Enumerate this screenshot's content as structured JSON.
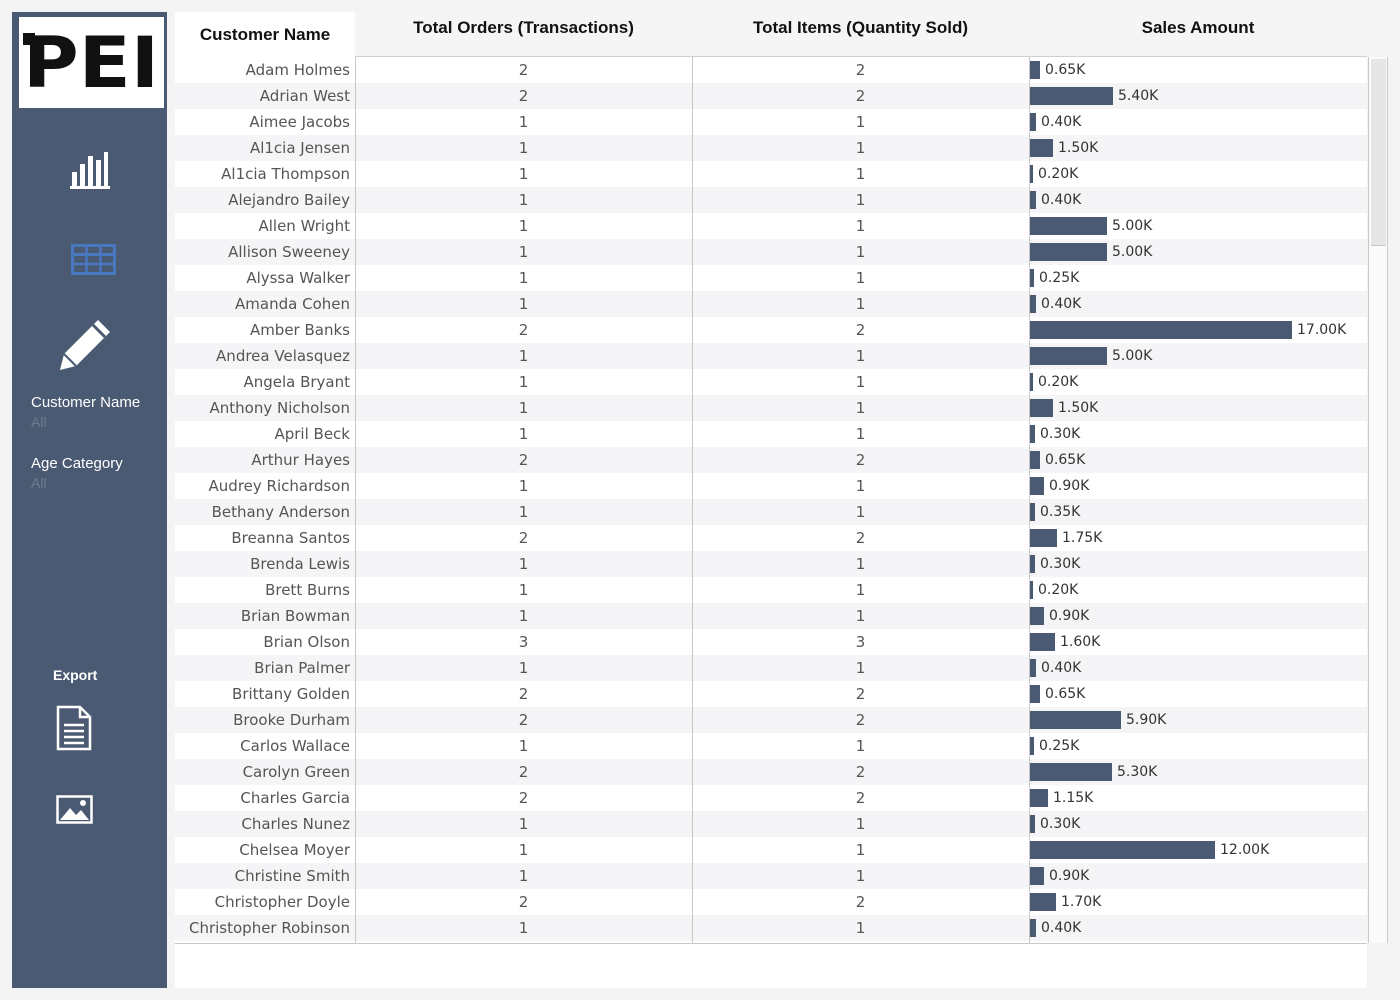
{
  "logo": {
    "text": "PEI"
  },
  "sidebar": {
    "nav": [
      {
        "name": "bar-chart-icon",
        "label": ""
      },
      {
        "name": "table-icon",
        "label": ""
      },
      {
        "name": "pencil-icon",
        "label": ""
      }
    ],
    "filters": [
      {
        "label": "Customer Name",
        "value": "All"
      },
      {
        "label": "Age Category",
        "value": "All"
      }
    ],
    "export_label": "Export",
    "colors": {
      "sidebar": "#4a5a73",
      "active_icon": "#4a78c0"
    }
  },
  "table": {
    "headers": {
      "name": "Customer Name",
      "orders": "Total Orders (Transactions)",
      "items": "Total Items (Quantity Sold)",
      "sales": "Sales Amount"
    },
    "bar_color": "#4a5a73",
    "sales_max": 17.0,
    "rows": [
      {
        "name": "Adam Holmes",
        "orders": "2",
        "items": "2",
        "sales": 0.65,
        "sales_label": "0.65K"
      },
      {
        "name": "Adrian West",
        "orders": "2",
        "items": "2",
        "sales": 5.4,
        "sales_label": "5.40K"
      },
      {
        "name": "Aimee Jacobs",
        "orders": "1",
        "items": "1",
        "sales": 0.4,
        "sales_label": "0.40K"
      },
      {
        "name": "Al1cia Jensen",
        "orders": "1",
        "items": "1",
        "sales": 1.5,
        "sales_label": "1.50K"
      },
      {
        "name": "Al1cia Thompson",
        "orders": "1",
        "items": "1",
        "sales": 0.2,
        "sales_label": "0.20K"
      },
      {
        "name": "Alejandro Bailey",
        "orders": "1",
        "items": "1",
        "sales": 0.4,
        "sales_label": "0.40K"
      },
      {
        "name": "Allen Wright",
        "orders": "1",
        "items": "1",
        "sales": 5.0,
        "sales_label": "5.00K"
      },
      {
        "name": "Allison Sweeney",
        "orders": "1",
        "items": "1",
        "sales": 5.0,
        "sales_label": "5.00K"
      },
      {
        "name": "Alyssa Walker",
        "orders": "1",
        "items": "1",
        "sales": 0.25,
        "sales_label": "0.25K"
      },
      {
        "name": "Amanda Cohen",
        "orders": "1",
        "items": "1",
        "sales": 0.4,
        "sales_label": "0.40K"
      },
      {
        "name": "Amber Banks",
        "orders": "2",
        "items": "2",
        "sales": 17.0,
        "sales_label": "17.00K"
      },
      {
        "name": "Andrea Velasquez",
        "orders": "1",
        "items": "1",
        "sales": 5.0,
        "sales_label": "5.00K"
      },
      {
        "name": "Angela Bryant",
        "orders": "1",
        "items": "1",
        "sales": 0.2,
        "sales_label": "0.20K"
      },
      {
        "name": "Anthony Nicholson",
        "orders": "1",
        "items": "1",
        "sales": 1.5,
        "sales_label": "1.50K"
      },
      {
        "name": "April Beck",
        "orders": "1",
        "items": "1",
        "sales": 0.3,
        "sales_label": "0.30K"
      },
      {
        "name": "Arthur Hayes",
        "orders": "2",
        "items": "2",
        "sales": 0.65,
        "sales_label": "0.65K"
      },
      {
        "name": "Audrey Richardson",
        "orders": "1",
        "items": "1",
        "sales": 0.9,
        "sales_label": "0.90K"
      },
      {
        "name": "Bethany Anderson",
        "orders": "1",
        "items": "1",
        "sales": 0.35,
        "sales_label": "0.35K"
      },
      {
        "name": "Breanna Santos",
        "orders": "2",
        "items": "2",
        "sales": 1.75,
        "sales_label": "1.75K"
      },
      {
        "name": "Brenda Lewis",
        "orders": "1",
        "items": "1",
        "sales": 0.3,
        "sales_label": "0.30K"
      },
      {
        "name": "Brett Burns",
        "orders": "1",
        "items": "1",
        "sales": 0.2,
        "sales_label": "0.20K"
      },
      {
        "name": "Brian Bowman",
        "orders": "1",
        "items": "1",
        "sales": 0.9,
        "sales_label": "0.90K"
      },
      {
        "name": "Brian Olson",
        "orders": "3",
        "items": "3",
        "sales": 1.6,
        "sales_label": "1.60K"
      },
      {
        "name": "Brian Palmer",
        "orders": "1",
        "items": "1",
        "sales": 0.4,
        "sales_label": "0.40K"
      },
      {
        "name": "Brittany Golden",
        "orders": "2",
        "items": "2",
        "sales": 0.65,
        "sales_label": "0.65K"
      },
      {
        "name": "Brooke Durham",
        "orders": "2",
        "items": "2",
        "sales": 5.9,
        "sales_label": "5.90K"
      },
      {
        "name": "Carlos Wallace",
        "orders": "1",
        "items": "1",
        "sales": 0.25,
        "sales_label": "0.25K"
      },
      {
        "name": "Carolyn Green",
        "orders": "2",
        "items": "2",
        "sales": 5.3,
        "sales_label": "5.30K"
      },
      {
        "name": "Charles Garcia",
        "orders": "2",
        "items": "2",
        "sales": 1.15,
        "sales_label": "1.15K"
      },
      {
        "name": "Charles Nunez",
        "orders": "1",
        "items": "1",
        "sales": 0.3,
        "sales_label": "0.30K"
      },
      {
        "name": "Chelsea Moyer",
        "orders": "1",
        "items": "1",
        "sales": 12.0,
        "sales_label": "12.00K"
      },
      {
        "name": "Christine Smith",
        "orders": "1",
        "items": "1",
        "sales": 0.9,
        "sales_label": "0.90K"
      },
      {
        "name": "Christopher Doyle",
        "orders": "2",
        "items": "2",
        "sales": 1.7,
        "sales_label": "1.70K"
      },
      {
        "name": "Christopher Robinson",
        "orders": "1",
        "items": "1",
        "sales": 0.4,
        "sales_label": "0.40K"
      }
    ]
  }
}
